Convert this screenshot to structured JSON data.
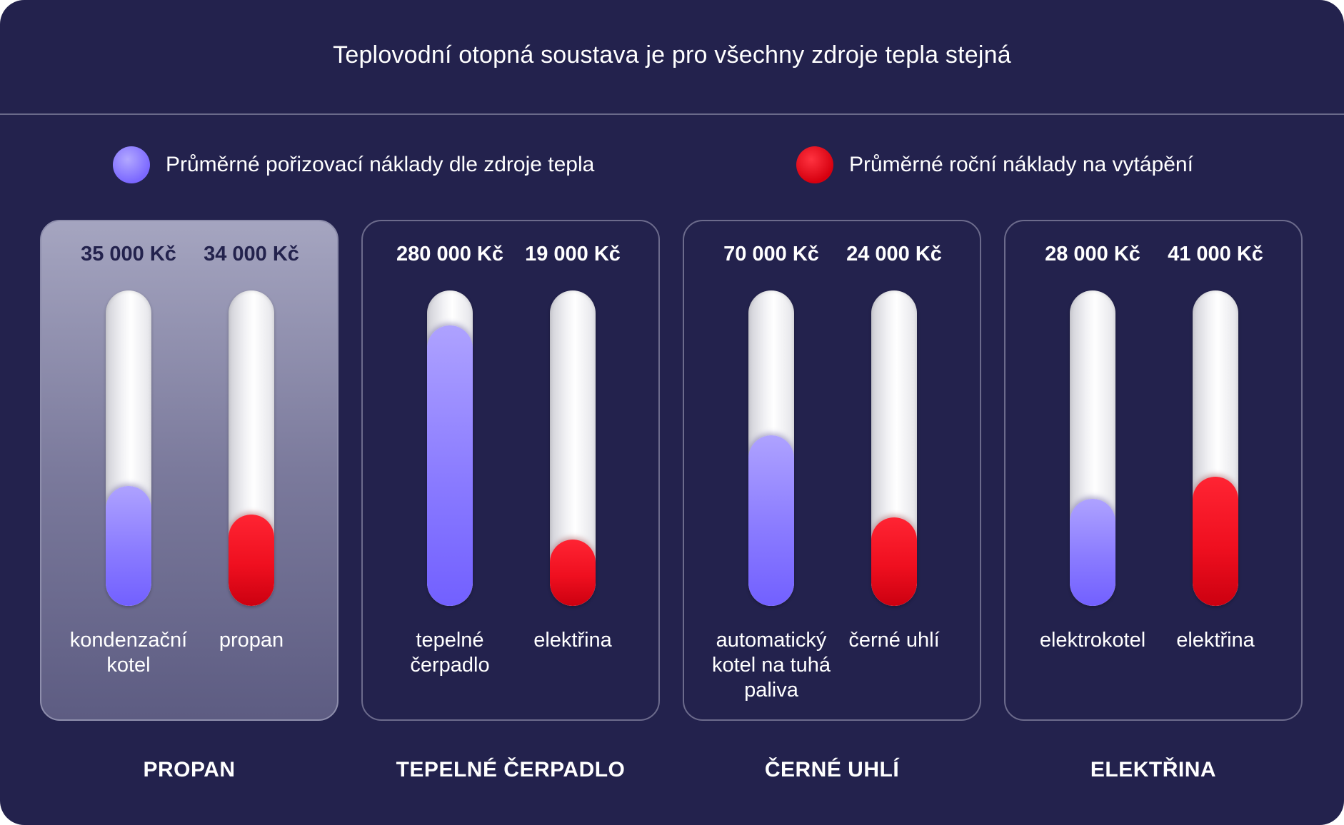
{
  "header": {
    "title": "Teplovodní otopná soustava je pro všechny zdroje tepla stejná"
  },
  "legend": {
    "purchase_label": "Průměrné pořizovací náklady dle zdroje tepla",
    "annual_label": "Průměrné roční náklady na vytápění"
  },
  "colors": {
    "background": "#23224d",
    "purchase": "#7b68ff",
    "annual": "#e8101f",
    "tube": "#eeeeee"
  },
  "chart_data": {
    "type": "bar",
    "series": [
      {
        "name": "Průměrné pořizovací náklady dle zdroje tepla",
        "key": "purchase"
      },
      {
        "name": "Průměrné roční náklady na vytápění",
        "key": "annual"
      }
    ],
    "groups": [
      {
        "name": "PROPAN",
        "highlight": true,
        "bars": [
          {
            "series": "purchase",
            "value_label": "35 000 Kč",
            "label": "kondenzační kotel",
            "fill": 0.38
          },
          {
            "series": "annual",
            "value_label": "34 000 Kč",
            "label": "propan",
            "fill": 0.29
          }
        ]
      },
      {
        "name": "TEPELNÉ ČERPADLO",
        "highlight": false,
        "bars": [
          {
            "series": "purchase",
            "value_label": "280 000 Kč",
            "label": "tepelné čerpadlo",
            "fill": 0.89
          },
          {
            "series": "annual",
            "value_label": "19 000 Kč",
            "label": "elektřina",
            "fill": 0.21
          }
        ]
      },
      {
        "name": "ČERNÉ UHLÍ",
        "highlight": false,
        "bars": [
          {
            "series": "purchase",
            "value_label": "70 000 Kč",
            "label": "automatický kotel na tuhá paliva",
            "fill": 0.54
          },
          {
            "series": "annual",
            "value_label": "24 000 Kč",
            "label": "černé uhlí",
            "fill": 0.28
          }
        ]
      },
      {
        "name": "ELEKTŘINA",
        "highlight": false,
        "bars": [
          {
            "series": "purchase",
            "value_label": "28 000 Kč",
            "label": "elektrokotel",
            "fill": 0.34
          },
          {
            "series": "annual",
            "value_label": "41 000 Kč",
            "label": "elektřina",
            "fill": 0.41
          }
        ]
      }
    ]
  }
}
